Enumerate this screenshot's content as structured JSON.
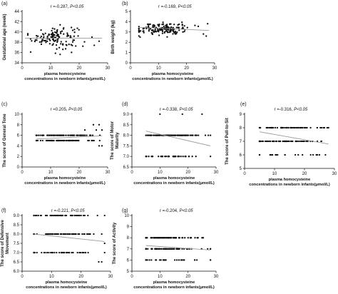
{
  "chart_data": [
    {
      "id": "a",
      "type": "scatter",
      "panel_label": "(a)",
      "stat": {
        "r": "r =-0.287,",
        "p": "P<0.05"
      },
      "xlabel": [
        "plasma homocysteine",
        "concentrations in newborn infants(μmol/L)"
      ],
      "ylabel": "Gestational age (week)",
      "xlim": [
        0,
        30
      ],
      "xticks": [
        0,
        10,
        20,
        30
      ],
      "ylim": [
        34,
        44
      ],
      "yticks": [
        34,
        36,
        38,
        40,
        42,
        44
      ],
      "fit_line": [
        [
          1,
          38.8
        ],
        [
          28,
          38.8
        ]
      ],
      "point_cloud": {
        "x_center": 11.5,
        "x_spread": 4,
        "x_min": 2,
        "x_max": 25,
        "y_center": 39,
        "y_spread": 1.1,
        "y_min": 35.6,
        "y_max": 42.2,
        "count": 130,
        "continuous": true,
        "extra": [
          [
            24.5,
            39
          ],
          [
            27,
            38.2
          ],
          [
            25.3,
            37.4
          ],
          [
            3,
            36.1
          ]
        ]
      }
    },
    {
      "id": "b",
      "type": "scatter",
      "panel_label": "(b)",
      "stat": {
        "r": "r =-0.169,",
        "p": "P<0.05"
      },
      "xlabel": [
        "plasma homocysteine",
        "concentrations in newborn infants(μmol/L)"
      ],
      "ylabel": "Birth weight (kg)",
      "xlim": [
        0,
        30
      ],
      "xticks": [
        0,
        10,
        20,
        30
      ],
      "ylim": [
        0,
        5
      ],
      "yticks": [
        0,
        1,
        2,
        3,
        4,
        5
      ],
      "fit_line": [
        [
          3,
          3.45
        ],
        [
          28,
          3.15
        ]
      ],
      "point_cloud": {
        "x_center": 11.5,
        "x_spread": 4.5,
        "x_min": 3,
        "x_max": 28,
        "y_center": 3.3,
        "y_spread": 0.3,
        "y_min": 2.5,
        "y_max": 4.1,
        "count": 160,
        "continuous": true,
        "extra": [
          [
            27.5,
            3.8
          ],
          [
            26,
            2.8
          ],
          [
            27,
            2.6
          ]
        ]
      }
    },
    {
      "id": "c",
      "type": "scatter",
      "panel_label": "(c)",
      "stat": {
        "r": "r =0.205,",
        "p": "P<0.05"
      },
      "xlabel": [
        "plasma homocysteine",
        "concentrations in newborn infants(μmol/L)"
      ],
      "ylabel": "The score of General Tone",
      "xlim": [
        0,
        30
      ],
      "xticks": [
        0,
        10,
        20,
        30
      ],
      "ylim": [
        0,
        10
      ],
      "yticks": [
        0,
        2,
        4,
        6,
        8,
        10
      ],
      "fit_line": [
        [
          5,
          5.3
        ],
        [
          28,
          5.9
        ]
      ],
      "point_cloud": {
        "x_center": 14,
        "x_spread": 6,
        "x_min": 5,
        "x_max": 28,
        "levels": [
          5,
          6
        ],
        "level_weights": [
          0.5,
          0.5
        ],
        "count": 170,
        "continuous": false,
        "extra": [
          [
            25,
            8
          ],
          [
            27,
            8
          ],
          [
            26,
            7
          ],
          [
            28,
            7
          ],
          [
            22,
            7
          ],
          [
            24,
            6
          ],
          [
            27,
            4
          ],
          [
            28,
            4
          ]
        ]
      }
    },
    {
      "id": "d",
      "type": "scatter",
      "panel_label": "(d)",
      "stat": {
        "r": "r =-0.338,",
        "p": "P<0.05"
      },
      "xlabel": [
        "plasma homocysteine",
        "concentrations in newborn infants(μmol/L)"
      ],
      "ylabel": "The score of Motor Maturity",
      "xlim": [
        0,
        30
      ],
      "xticks": [
        0,
        10,
        20,
        30
      ],
      "ylim": [
        6.5,
        9.0
      ],
      "yticks": [
        6.5,
        7.0,
        7.5,
        8.0,
        8.5,
        9.0
      ],
      "fit_line": [
        [
          5,
          8.2
        ],
        [
          28,
          7.5
        ]
      ],
      "point_cloud": {
        "x_center": 14,
        "x_spread": 6,
        "x_min": 5,
        "x_max": 28,
        "levels": [
          8,
          7
        ],
        "level_weights": [
          0.75,
          0.25
        ],
        "count": 150,
        "continuous": false,
        "extra": [
          [
            10,
            9
          ],
          [
            18,
            9
          ],
          [
            25,
            9
          ]
        ]
      }
    },
    {
      "id": "e",
      "type": "scatter",
      "panel_label": "(e)",
      "stat": {
        "r": "r =-0.316,",
        "p": "P<0.05"
      },
      "xlabel": [
        "plasma homocysteine",
        "concentrations in newborn infants(μmol/L)"
      ],
      "ylabel": "The score of Pull-to-Sit",
      "xlim": [
        0,
        30
      ],
      "xticks": [
        0,
        10,
        20,
        30
      ],
      "ylim": [
        5,
        9
      ],
      "yticks": [
        5,
        6,
        7,
        8,
        9
      ],
      "fit_line": [
        [
          5,
          7.7
        ],
        [
          28,
          6.8
        ]
      ],
      "point_cloud": {
        "x_center": 14,
        "x_spread": 6,
        "x_min": 5,
        "x_max": 28,
        "levels": [
          8,
          7,
          6
        ],
        "level_weights": [
          0.45,
          0.45,
          0.1
        ],
        "count": 170,
        "continuous": false,
        "extra": [
          [
            27,
            6
          ],
          [
            25,
            6
          ]
        ]
      }
    },
    {
      "id": "f",
      "type": "scatter",
      "panel_label": "(f)",
      "stat": {
        "r": "r =-0.221,",
        "p": "P<0.05"
      },
      "xlabel": [
        "plasma homocysteine",
        "concentrations in newborn infants(μmol/L)"
      ],
      "ylabel": "The score of Defensive Movement",
      "xlim": [
        0,
        30
      ],
      "xticks": [
        0,
        10,
        20,
        30
      ],
      "ylim": [
        6.0,
        9.0
      ],
      "yticks": [
        6.0,
        6.5,
        7.0,
        7.5,
        8.0,
        8.5,
        9.0
      ],
      "fit_line": [
        [
          4,
          8.0
        ],
        [
          28,
          7.6
        ]
      ],
      "point_cloud": {
        "x_center": 13,
        "x_spread": 6,
        "x_min": 4,
        "x_max": 28,
        "levels": [
          9,
          8,
          7
        ],
        "level_weights": [
          0.35,
          0.35,
          0.3
        ],
        "count": 170,
        "continuous": false,
        "extra": [
          [
            27,
            8
          ],
          [
            28,
            7.5
          ],
          [
            27,
            6.5
          ],
          [
            26,
            6.5
          ]
        ]
      }
    },
    {
      "id": "g",
      "type": "scatter",
      "panel_label": "(g)",
      "stat": {
        "r": "r =-0.204,",
        "p": "P<0.05"
      },
      "xlabel": [
        "plasma homocysteine",
        "concentrations in newborn infants(μmol/L)"
      ],
      "ylabel": "The score of Activity",
      "xlim": [
        0,
        30
      ],
      "xticks": [
        0,
        10,
        20,
        30
      ],
      "ylim": [
        5,
        10
      ],
      "yticks": [
        5,
        6,
        7,
        8,
        9,
        10
      ],
      "fit_line": [
        [
          5,
          7.3
        ],
        [
          28,
          6.9
        ]
      ],
      "point_cloud": {
        "x_center": 13,
        "x_spread": 6,
        "x_min": 5,
        "x_max": 28,
        "levels": [
          8,
          7,
          6
        ],
        "level_weights": [
          0.4,
          0.45,
          0.15
        ],
        "count": 170,
        "continuous": false,
        "extra": [
          [
            27,
            7
          ],
          [
            28,
            7
          ],
          [
            25,
            8
          ]
        ]
      }
    }
  ]
}
